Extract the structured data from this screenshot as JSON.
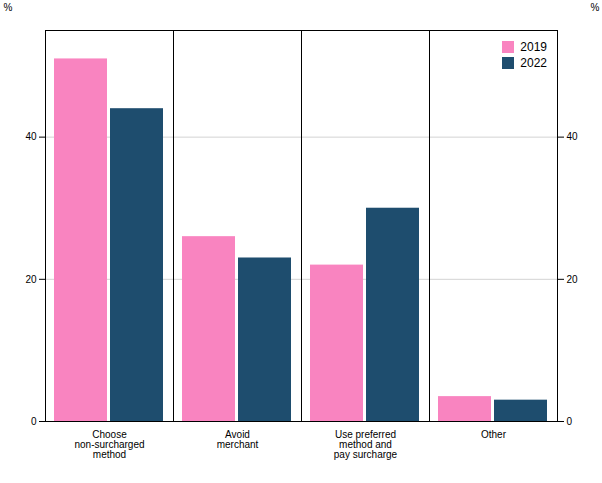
{
  "chart_data": {
    "type": "bar",
    "categories": [
      "Choose\nnon-surcharged\nmethod",
      "Avoid\nmerchant",
      "Use preferred\nmethod and\npay surcharge",
      "Other"
    ],
    "series": [
      {
        "name": "2019",
        "color": "#F984C0",
        "values": [
          51,
          26,
          22,
          3.5
        ]
      },
      {
        "name": "2022",
        "color": "#1E4D6E",
        "values": [
          44,
          23,
          30,
          3
        ]
      }
    ],
    "ylabel": "%",
    "y2label": "%",
    "ylim": [
      0,
      55
    ],
    "yticks": [
      0,
      20,
      40
    ],
    "y2lim": [
      0,
      55
    ],
    "y2ticks": [
      0,
      20,
      40
    ],
    "grid": true,
    "legend": "upper right"
  }
}
